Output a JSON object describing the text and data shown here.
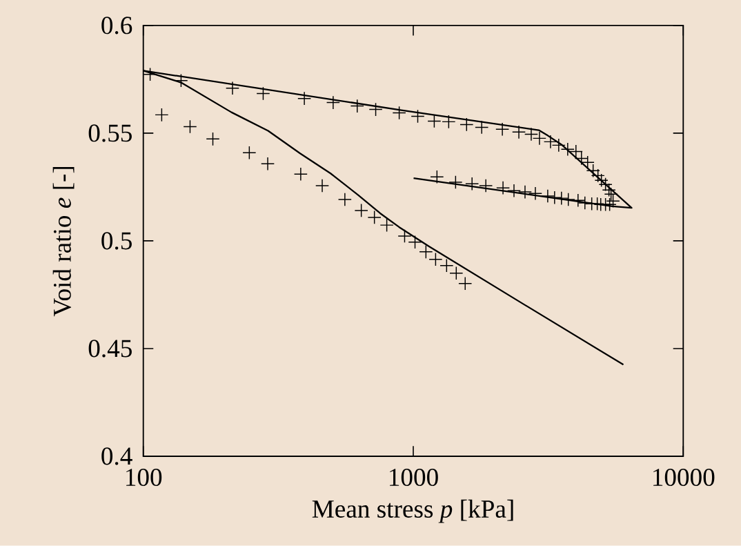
{
  "chart_data": {
    "type": "line",
    "xlabel": "Mean stress *p* [kPa]",
    "ylabel": "Void ratio *e* [-]",
    "log": "x",
    "xlim": [
      100,
      10000
    ],
    "ylim": [
      0.4,
      0.6
    ],
    "xticks": [
      100,
      1000,
      10000
    ],
    "yticks": [
      0.4,
      0.45,
      0.5,
      0.55,
      0.6
    ],
    "grid": false,
    "series": [
      {
        "color": "#000000",
        "marker": "none",
        "x": [
          100,
          138,
          212,
          290,
          381,
          494,
          623,
          754,
          886,
          1144,
          2586,
          6002
        ],
        "values": [
          0.579,
          0.5735,
          0.5597,
          0.5511,
          0.5406,
          0.5313,
          0.5214,
          0.5128,
          0.5064,
          0.4974,
          0.4703,
          0.4425
        ]
      },
      {
        "color": "#000000",
        "marker": "none",
        "x": [
          100,
          903,
          2917,
          3148,
          3540,
          6440,
          5466,
          1003
        ],
        "values": [
          0.579,
          0.5607,
          0.5514,
          0.5489,
          0.5447,
          0.5153,
          0.516,
          0.5291
        ]
      },
      {
        "type": "scatter",
        "color": "#000000",
        "marker": "cross",
        "x": [
          106,
          117,
          149,
          181,
          247,
          289,
          383,
          460,
          558,
          642,
          718,
          798,
          929,
          1015,
          1114,
          1210,
          1329,
          1443,
          1557
        ],
        "values": [
          0.5773,
          0.5585,
          0.553,
          0.5473,
          0.5409,
          0.5358,
          0.531,
          0.5256,
          0.5192,
          0.5141,
          0.5109,
          0.5073,
          0.5022,
          0.4994,
          0.4949,
          0.4914,
          0.4885,
          0.485,
          0.4802
        ]
      },
      {
        "type": "scatter",
        "color": "#000000",
        "marker": "cross",
        "x": [
          138,
          214,
          278,
          395,
          505,
          620,
          726,
          887,
          1039,
          1196,
          1353,
          1576,
          1793,
          2138,
          2461,
          2735,
          2934,
          3224,
          3458,
          3733,
          4005,
          4198,
          4425,
          4637,
          4832,
          4976,
          5154,
          5307,
          5402,
          5497,
          5339,
          5154,
          4948,
          4803,
          4583,
          4323,
          4077,
          3753,
          3540,
          3338,
          3148,
          2833,
          2594,
          2361,
          2150,
          1857,
          1651,
          1435,
          1224
        ],
        "values": [
          0.5744,
          0.5709,
          0.5684,
          0.5661,
          0.5642,
          0.5626,
          0.561,
          0.5594,
          0.5578,
          0.5556,
          0.5553,
          0.554,
          0.5527,
          0.5518,
          0.5505,
          0.5495,
          0.5476,
          0.546,
          0.5444,
          0.5425,
          0.5415,
          0.5383,
          0.5364,
          0.5326,
          0.5303,
          0.5281,
          0.5262,
          0.5236,
          0.5217,
          0.5185,
          0.5169,
          0.5169,
          0.5169,
          0.5172,
          0.5172,
          0.5176,
          0.5188,
          0.5192,
          0.5198,
          0.5201,
          0.5208,
          0.522,
          0.5227,
          0.5233,
          0.5246,
          0.5256,
          0.5265,
          0.5272,
          0.5297
        ]
      }
    ]
  }
}
